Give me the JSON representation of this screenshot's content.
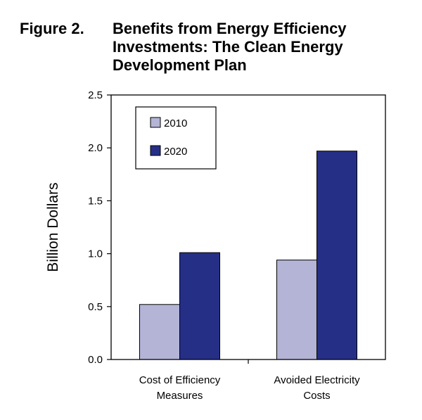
{
  "figure": {
    "label": "Figure 2.",
    "title": "Benefits from Energy Efficiency Investments: The Clean Energy Development Plan"
  },
  "chart_data": {
    "type": "bar",
    "title": "Benefits from Energy Efficiency Investments: The Clean Energy Development Plan",
    "xlabel": "",
    "ylabel": "Billion Dollars",
    "ylim": [
      0,
      2.5
    ],
    "yticks": [
      "0.0",
      "0.5",
      "1.0",
      "1.5",
      "2.0",
      "2.5"
    ],
    "categories": [
      [
        "Cost of Efficiency",
        "Measures"
      ],
      [
        "Avoided Electricity",
        "Costs"
      ]
    ],
    "series": [
      {
        "name": "2010",
        "color": "#b4b4d6",
        "values": [
          0.52,
          0.94
        ]
      },
      {
        "name": "2020",
        "color": "#262f86",
        "values": [
          1.01,
          1.97
        ]
      }
    ],
    "legend_position": "top-left",
    "grid": false
  }
}
